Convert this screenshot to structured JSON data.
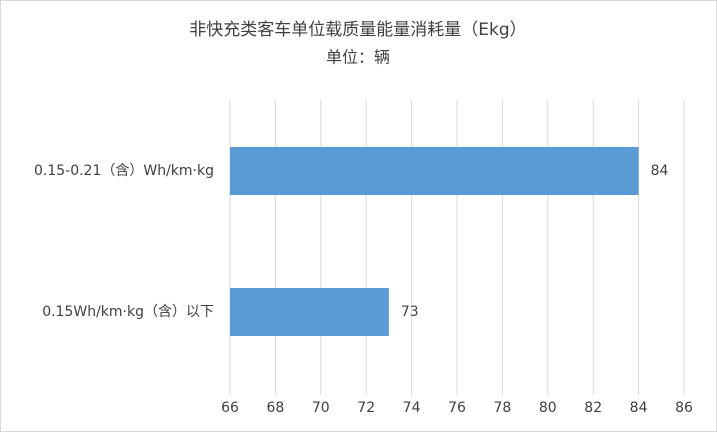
{
  "chart_data": {
    "type": "bar",
    "orientation": "horizontal",
    "title": "非快充类客车单位载质量能量消耗量（Ekg）",
    "subtitle": "单位：辆",
    "categories": [
      "0.15-0.21（含）Wh/km·kg",
      "0.15Wh/km·kg（含）以下"
    ],
    "values": [
      84,
      73
    ],
    "color": "#5b9bd5",
    "xlim": [
      66,
      86
    ],
    "xticks": [
      66,
      68,
      70,
      72,
      74,
      76,
      78,
      80,
      82,
      84,
      86
    ],
    "grid": true
  }
}
